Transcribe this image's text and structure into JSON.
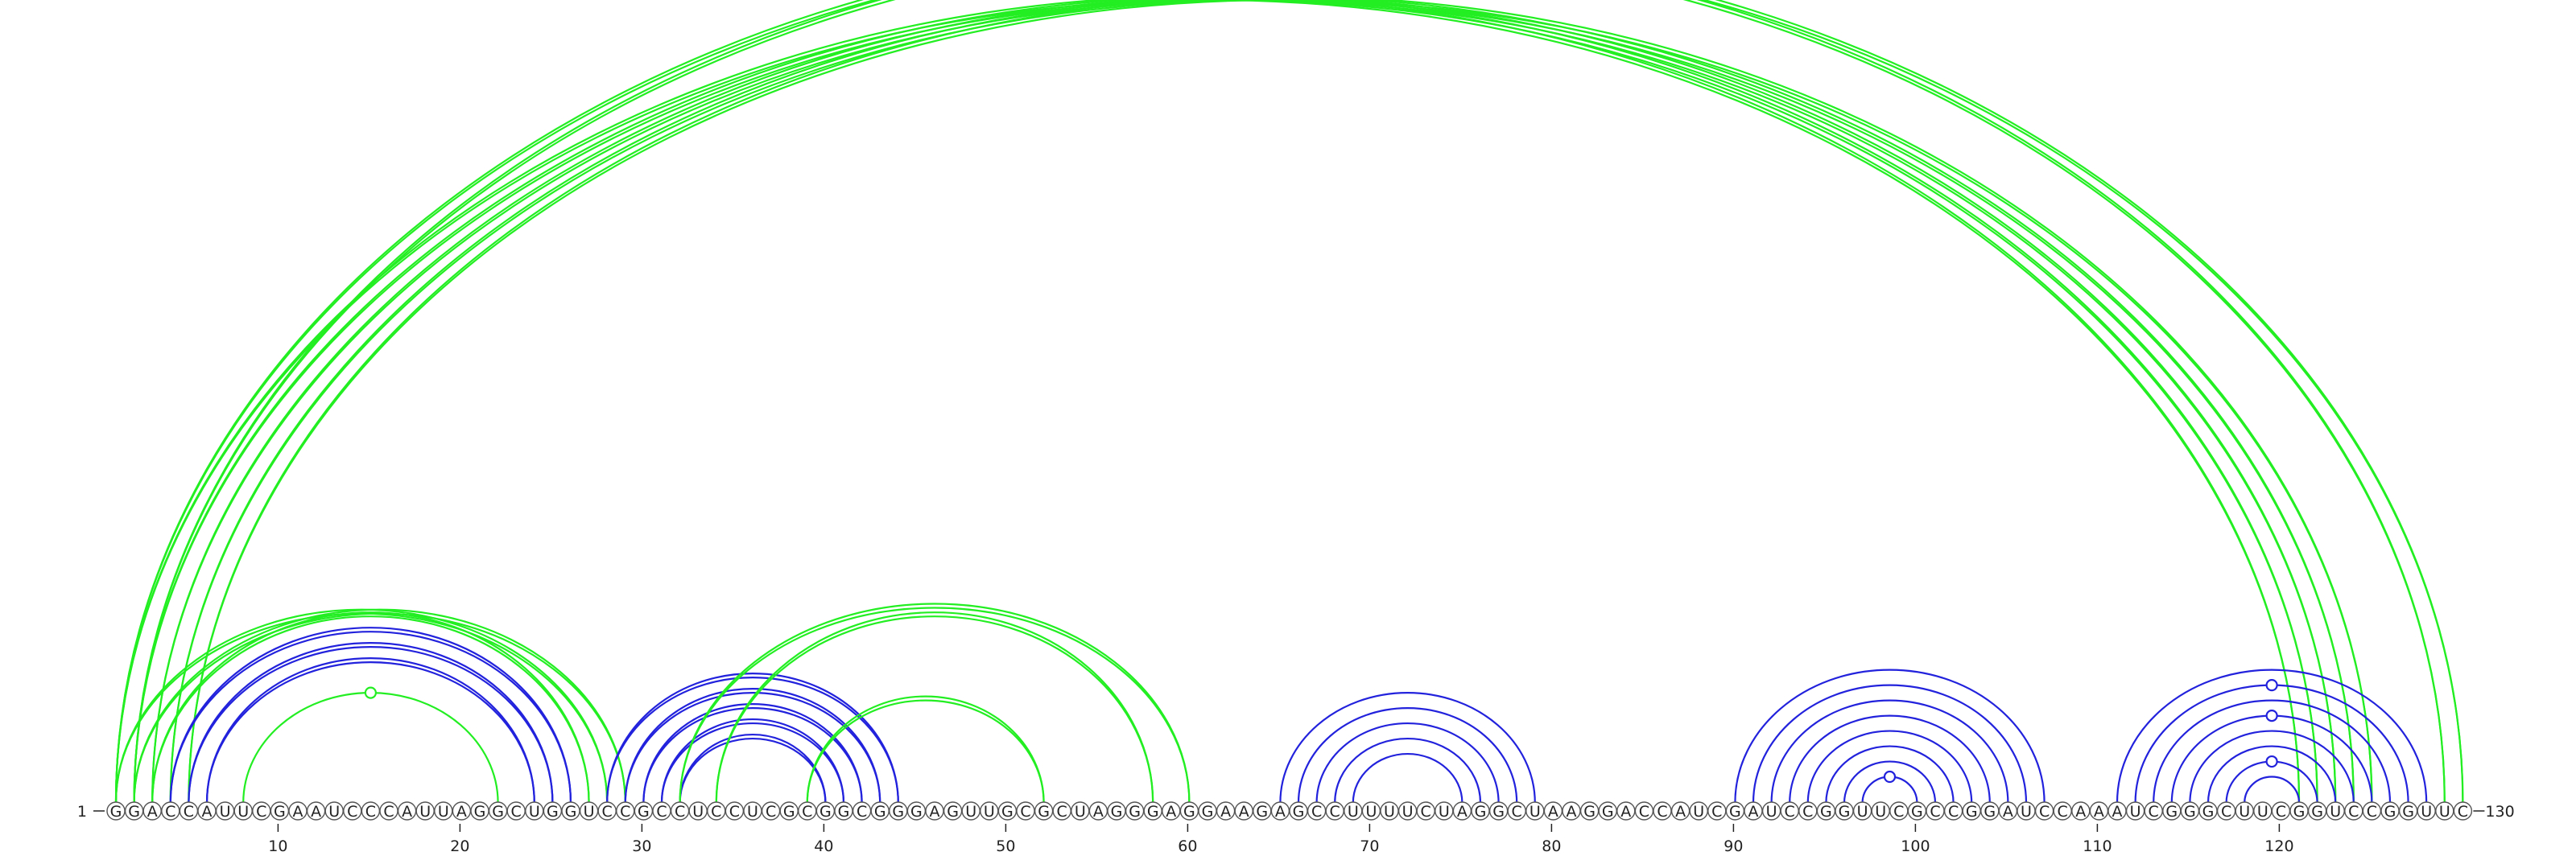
{
  "sequence": "GGACCAUUCGAAUCCCAUUAGGCUGGUCCGCCUCCUCGCGGCGGGAGUUGCGCUAGGGAGGAAGAGCCUUUUCUAGGCUAAGGACCAUCGAUCCGGUUCGCCGGAUCCAAAUCGGGCUUCGGUCCGGUUC",
  "start_label": "1",
  "end_label": "130",
  "tick_labels": [
    "10",
    "20",
    "30",
    "40",
    "50",
    "60",
    "70",
    "80",
    "90",
    "100",
    "110",
    "120"
  ],
  "colors": {
    "pair_green": "#22ee22",
    "pair_blue": "#2222dd",
    "nucleotide_stroke": "#555555"
  },
  "arcs": [
    {
      "color": "green",
      "double": true,
      "pairs": [
        [
          1,
          121
        ],
        [
          2,
          122
        ],
        [
          3,
          123
        ],
        [
          4,
          124
        ],
        [
          5,
          125
        ]
      ]
    },
    {
      "color": "green",
      "double": true,
      "pairs": [
        [
          1,
          129
        ],
        [
          2,
          130
        ]
      ]
    },
    {
      "color": "green",
      "double": true,
      "pairs": [
        [
          1,
          28
        ],
        [
          2,
          29
        ],
        [
          3,
          27
        ]
      ]
    },
    {
      "color": "blue",
      "double": true,
      "pairs": [
        [
          4,
          26
        ],
        [
          5,
          25
        ],
        [
          6,
          24
        ]
      ]
    },
    {
      "color": "green",
      "double": false,
      "pairs": [
        [
          8,
          22
        ]
      ]
    },
    {
      "color": "blue",
      "double": true,
      "pairs": [
        [
          28,
          44
        ],
        [
          29,
          43
        ],
        [
          30,
          42
        ],
        [
          31,
          41
        ],
        [
          32,
          40
        ]
      ]
    },
    {
      "color": "green",
      "double": true,
      "pairs": [
        [
          32,
          60
        ],
        [
          34,
          58
        ]
      ]
    },
    {
      "color": "green",
      "double": true,
      "pairs": [
        [
          39,
          52
        ]
      ]
    },
    {
      "color": "blue",
      "double": false,
      "pairs": [
        [
          65,
          79
        ],
        [
          66,
          78
        ],
        [
          67,
          77
        ],
        [
          68,
          76
        ],
        [
          69,
          75
        ]
      ]
    },
    {
      "color": "blue",
      "double": false,
      "pairs": [
        [
          90,
          107
        ],
        [
          91,
          106
        ],
        [
          92,
          105
        ],
        [
          93,
          104
        ],
        [
          94,
          103
        ],
        [
          95,
          102
        ],
        [
          96,
          101
        ],
        [
          97,
          100
        ]
      ]
    },
    {
      "color": "blue",
      "double": false,
      "pairs": [
        [
          111,
          128
        ],
        [
          112,
          127
        ],
        [
          113,
          126
        ],
        [
          114,
          125
        ],
        [
          115,
          124
        ],
        [
          116,
          123
        ],
        [
          117,
          122
        ],
        [
          118,
          121
        ]
      ]
    }
  ],
  "markers": [
    {
      "color": "green",
      "pair": [
        1,
        130
      ]
    },
    {
      "color": "green",
      "pair": [
        8,
        22
      ]
    },
    {
      "color": "blue",
      "pair": [
        97,
        100
      ]
    },
    {
      "color": "blue",
      "pair": [
        112,
        127
      ]
    },
    {
      "color": "blue",
      "pair": [
        114,
        125
      ]
    },
    {
      "color": "blue",
      "pair": [
        117,
        122
      ]
    }
  ]
}
